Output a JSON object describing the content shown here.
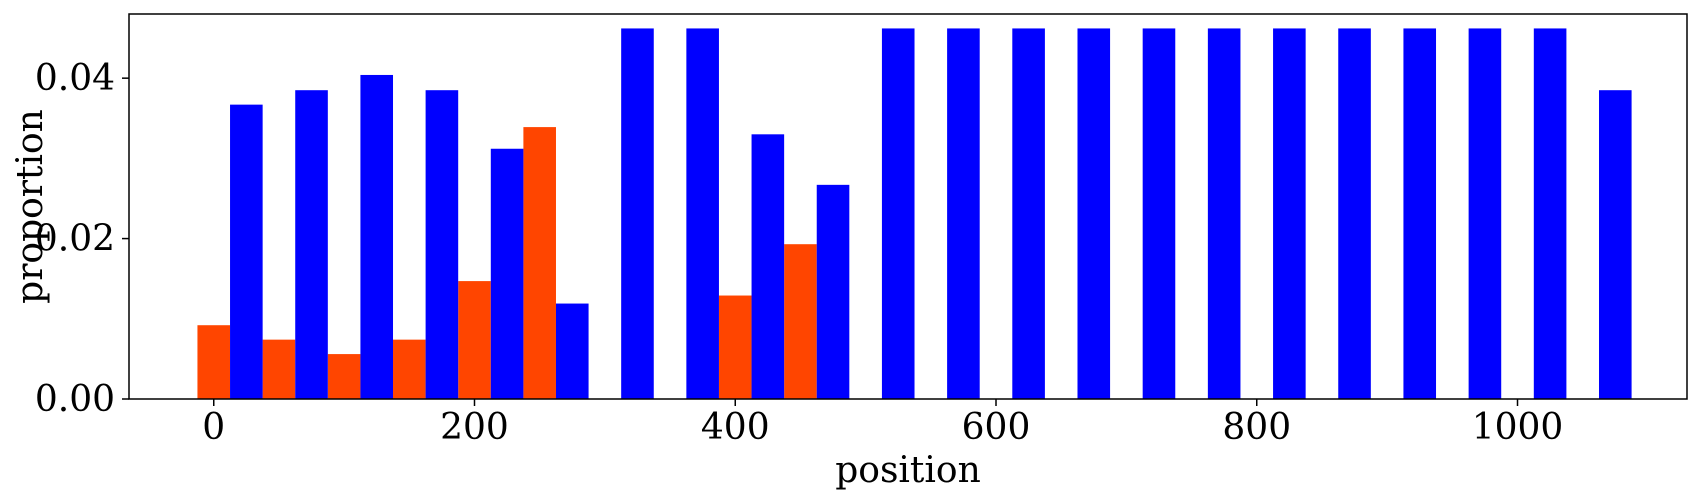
{
  "chart_data": {
    "type": "bar",
    "xlabel": "position",
    "ylabel": "proportion",
    "xlim": [
      -65,
      1130
    ],
    "ylim": [
      0,
      0.048
    ],
    "xticks": [
      0,
      200,
      400,
      600,
      800,
      1000
    ],
    "xtick_labels": [
      "0",
      "200",
      "400",
      "600",
      "800",
      "1000"
    ],
    "yticks": [
      0,
      0.02,
      0.04
    ],
    "ytick_labels": [
      "0.00",
      "0.02",
      "0.04"
    ],
    "bar_width": 25,
    "grid": false,
    "series": [
      {
        "color": "#ff4500",
        "x": [
          0,
          50,
          100,
          150,
          200,
          250,
          400,
          450
        ],
        "values": [
          0.0092,
          0.0074,
          0.0056,
          0.0074,
          0.0147,
          0.0339,
          0.0129,
          0.0193
        ]
      },
      {
        "color": "#0000ff",
        "x": [
          25,
          75,
          125,
          175,
          225,
          275,
          325,
          375,
          425,
          475,
          525,
          575,
          625,
          675,
          725,
          775,
          825,
          875,
          925,
          975,
          1025,
          1075
        ],
        "values": [
          0.0367,
          0.0385,
          0.0404,
          0.0385,
          0.0312,
          0.0119,
          0.0462,
          0.0462,
          0.033,
          0.0267,
          0.0462,
          0.0462,
          0.0462,
          0.0462,
          0.0462,
          0.0462,
          0.0462,
          0.0462,
          0.0462,
          0.0462,
          0.0462,
          0.0385
        ]
      }
    ]
  }
}
